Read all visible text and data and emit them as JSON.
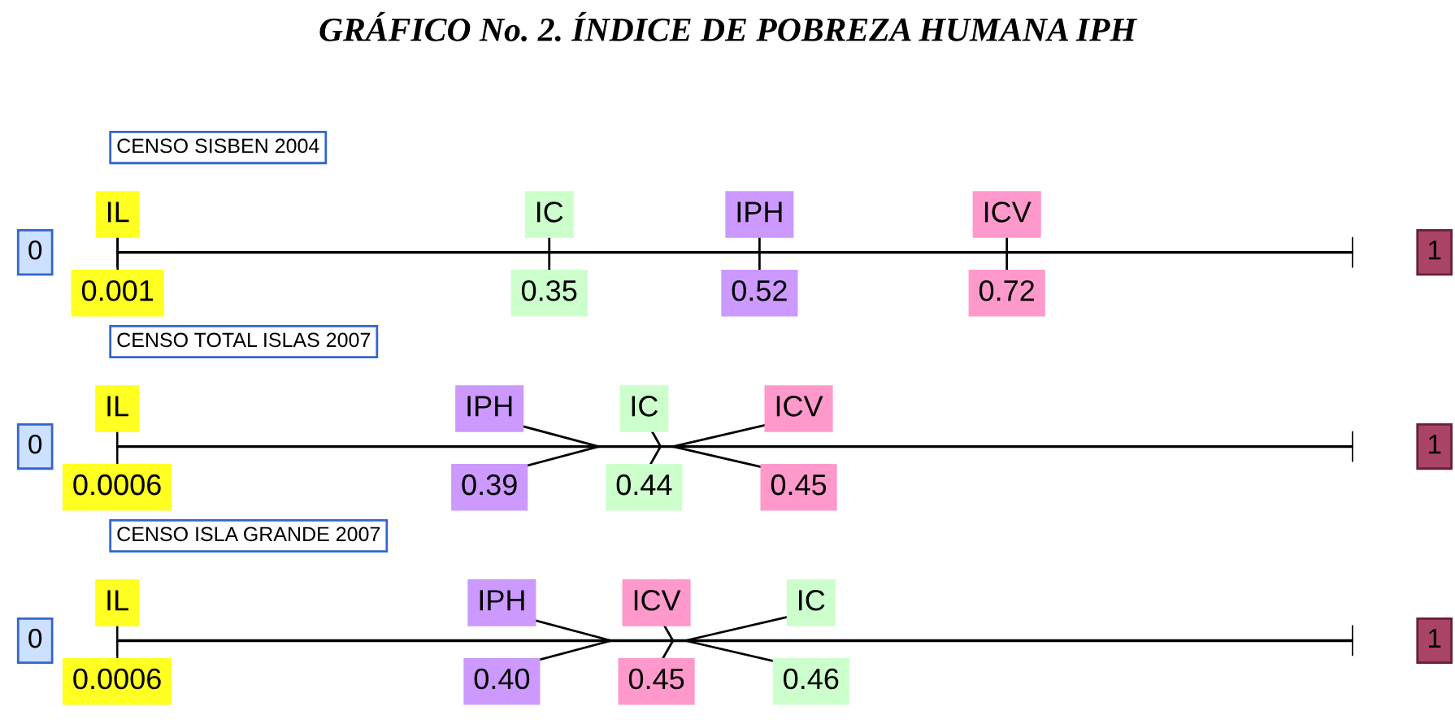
{
  "chart_data": [
    {
      "type": "other",
      "title": "GRÁFICO No. 2. ÍNDICE DE POBREZA HUMANA IPH",
      "subtitle": "CENSO SISBEN 2004",
      "annotations": [
        "0",
        "1"
      ],
      "series": [
        {
          "name": "IL",
          "color": "#ffff22",
          "values": [
            0.001
          ],
          "value_labels": [
            "0.001"
          ]
        },
        {
          "name": "IC",
          "color": "#ccffcc",
          "values": [
            0.35
          ],
          "value_labels": [
            "0.35"
          ]
        },
        {
          "name": "IPH",
          "color": "#cc99ff",
          "values": [
            0.52
          ],
          "value_labels": [
            "0.52"
          ]
        },
        {
          "name": "ICV",
          "color": "#ff99cc",
          "values": [
            0.72
          ],
          "value_labels": [
            "0.72"
          ]
        }
      ]
    },
    {
      "type": "other",
      "subtitle": "CENSO TOTAL ISLAS 2007",
      "annotations": [
        "0",
        "1"
      ],
      "series": [
        {
          "name": "IL",
          "color": "#ffff22",
          "values": [
            0.0006
          ],
          "value_labels": [
            "0.0006"
          ]
        },
        {
          "name": "IC",
          "color": "#ccffcc",
          "values": [
            0.44
          ],
          "value_labels": [
            "0.44"
          ]
        },
        {
          "name": "IPH",
          "color": "#cc99ff",
          "values": [
            0.39
          ],
          "value_labels": [
            "0.39"
          ]
        },
        {
          "name": "ICV",
          "color": "#ff99cc",
          "values": [
            0.45
          ],
          "value_labels": [
            "0.45"
          ]
        }
      ]
    },
    {
      "type": "other",
      "subtitle": "CENSO ISLA GRANDE 2007",
      "annotations": [
        "0",
        "1"
      ],
      "series": [
        {
          "name": "IL",
          "color": "#ffff22",
          "values": [
            0.0006
          ],
          "value_labels": [
            "0.0006"
          ]
        },
        {
          "name": "IC",
          "color": "#ccffcc",
          "values": [
            0.46
          ],
          "value_labels": [
            "0.46"
          ]
        },
        {
          "name": "IPH",
          "color": "#cc99ff",
          "values": [
            0.4
          ],
          "value_labels": [
            "0.40"
          ]
        },
        {
          "name": "ICV",
          "color": "#ff99cc",
          "values": [
            0.45
          ],
          "value_labels": [
            "0.45"
          ]
        }
      ]
    }
  ]
}
